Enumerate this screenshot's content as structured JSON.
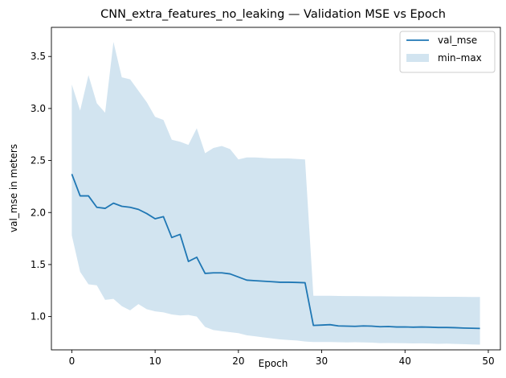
{
  "chart_data": {
    "type": "line",
    "title": "CNN_extra_features_no_leaking — Validation MSE vs Epoch",
    "xlabel": "Epoch",
    "ylabel": "val_mse in meters",
    "xlim": [
      -2.45,
      51.45
    ],
    "ylim": [
      0.68,
      3.78
    ],
    "xticks": [
      0,
      10,
      20,
      30,
      40,
      50
    ],
    "yticks": [
      1.0,
      1.5,
      2.0,
      2.5,
      3.0,
      3.5
    ],
    "grid": false,
    "legend_position": "top-right",
    "colors": {
      "line": "#1f77b4",
      "band": "#1f77b4"
    },
    "x": [
      0,
      1,
      2,
      3,
      4,
      5,
      6,
      7,
      8,
      9,
      10,
      11,
      12,
      13,
      14,
      15,
      16,
      17,
      18,
      19,
      20,
      21,
      22,
      23,
      24,
      25,
      26,
      27,
      28,
      29,
      30,
      31,
      32,
      33,
      34,
      35,
      36,
      37,
      38,
      39,
      40,
      41,
      42,
      43,
      44,
      45,
      46,
      47,
      48,
      49
    ],
    "series": [
      {
        "name": "val_mse",
        "values": [
          2.37,
          2.16,
          2.16,
          2.05,
          2.04,
          2.09,
          2.06,
          2.05,
          2.03,
          1.99,
          1.94,
          1.96,
          1.76,
          1.79,
          1.53,
          1.57,
          1.415,
          1.42,
          1.42,
          1.41,
          1.38,
          1.35,
          1.345,
          1.34,
          1.335,
          1.33,
          1.33,
          1.328,
          1.325,
          0.915,
          0.918,
          0.922,
          0.91,
          0.908,
          0.906,
          0.91,
          0.908,
          0.902,
          0.904,
          0.9,
          0.9,
          0.898,
          0.9,
          0.898,
          0.895,
          0.895,
          0.893,
          0.89,
          0.888,
          0.886
        ]
      },
      {
        "name": "min–max",
        "lower": [
          1.78,
          1.43,
          1.31,
          1.3,
          1.16,
          1.17,
          1.1,
          1.06,
          1.12,
          1.07,
          1.05,
          1.04,
          1.02,
          1.01,
          1.015,
          1.0,
          0.9,
          0.87,
          0.86,
          0.85,
          0.84,
          0.82,
          0.81,
          0.8,
          0.79,
          0.78,
          0.775,
          0.77,
          0.76,
          0.755,
          0.755,
          0.755,
          0.753,
          0.752,
          0.753,
          0.752,
          0.75,
          0.745,
          0.746,
          0.745,
          0.744,
          0.742,
          0.743,
          0.741,
          0.738,
          0.74,
          0.737,
          0.735,
          0.732,
          0.73
        ],
        "upper": [
          3.23,
          2.98,
          3.32,
          3.05,
          2.96,
          3.64,
          3.3,
          3.28,
          3.17,
          3.06,
          2.92,
          2.89,
          2.7,
          2.68,
          2.65,
          2.81,
          2.57,
          2.62,
          2.64,
          2.61,
          2.51,
          2.53,
          2.53,
          2.525,
          2.52,
          2.52,
          2.52,
          2.515,
          2.51,
          1.2,
          1.2,
          1.2,
          1.198,
          1.197,
          1.197,
          1.196,
          1.195,
          1.195,
          1.194,
          1.193,
          1.193,
          1.192,
          1.192,
          1.191,
          1.19,
          1.19,
          1.19,
          1.189,
          1.188,
          1.188
        ]
      }
    ]
  }
}
